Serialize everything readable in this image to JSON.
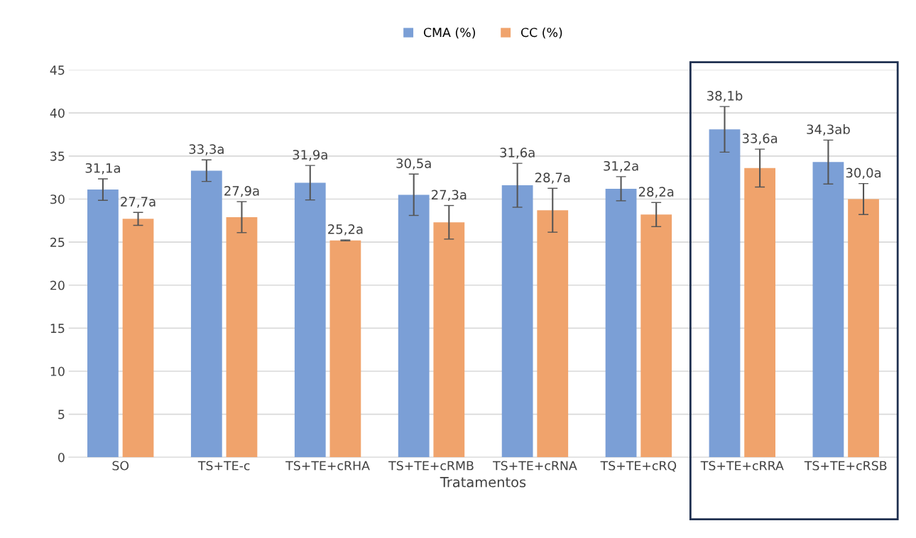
{
  "chart_data": {
    "type": "bar",
    "xlabel": "Tratamentos",
    "categories": [
      "SO",
      "TS+TE-c",
      "TS+TE+cRHA",
      "TS+TE+cRMB",
      "TS+TE+cRNA",
      "TS+TE+cRQ",
      "TS+TE+cRRA",
      "TS+TE+cRSB"
    ],
    "series": [
      {
        "name": "CMA (%)",
        "color": "#7b9fd6",
        "values": [
          31.1,
          33.3,
          31.9,
          30.5,
          31.6,
          31.2,
          38.1,
          34.3
        ],
        "errors": [
          1.25,
          1.25,
          2.0,
          2.4,
          2.55,
          1.4,
          2.65,
          2.55
        ],
        "value_labels": [
          "31,1a",
          "33,3a",
          "31,9a",
          "30,5a",
          "31,6a",
          "31,2a",
          "38,1b",
          "34,3ab"
        ]
      },
      {
        "name": "CC (%)",
        "color": "#f0a36c",
        "values": [
          27.7,
          27.9,
          25.2,
          27.3,
          28.7,
          28.2,
          33.6,
          30.0
        ],
        "errors": [
          0.75,
          1.8,
          0.05,
          1.95,
          2.55,
          1.4,
          2.2,
          1.8
        ],
        "value_labels": [
          "27,7a",
          "27,9a",
          "25,2a",
          "27,3a",
          "28,7a",
          "28,2a",
          "33,6a",
          "30,0a"
        ]
      }
    ],
    "ylim": [
      0,
      45
    ],
    "yticks": [
      0,
      5,
      10,
      15,
      20,
      25,
      30,
      35,
      40,
      45
    ],
    "grid": "y",
    "legend": "top"
  }
}
